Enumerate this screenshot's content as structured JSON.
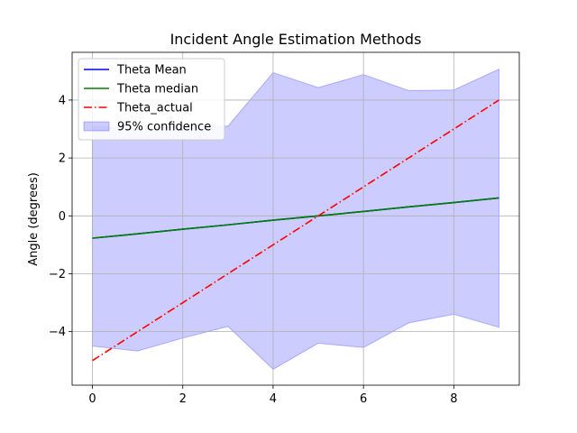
{
  "chart_data": {
    "type": "line",
    "title": "Incident Angle Estimation Methods",
    "xlabel": "",
    "ylabel": "Angle (degrees)",
    "x": [
      0,
      1,
      2,
      3,
      4,
      5,
      6,
      7,
      8,
      9
    ],
    "xlim": [
      -0.45,
      9.45
    ],
    "ylim": [
      -5.85,
      5.65
    ],
    "xticks": [
      0,
      2,
      4,
      6,
      8
    ],
    "yticks": [
      -4,
      -2,
      0,
      2,
      4
    ],
    "xtick_labels": [
      "0",
      "2",
      "4",
      "6",
      "8"
    ],
    "ytick_labels": [
      "−4",
      "−2",
      "0",
      "2",
      "4"
    ],
    "grid": true,
    "legend_position": "top-left",
    "series": [
      {
        "name": "Theta Mean",
        "style": "solid",
        "color": "#0000ff",
        "values": [
          -0.77,
          -0.62,
          -0.46,
          -0.31,
          -0.15,
          0.0,
          0.15,
          0.31,
          0.46,
          0.62
        ]
      },
      {
        "name": "Theta median",
        "style": "solid",
        "color": "#008000",
        "values": [
          -0.77,
          -0.62,
          -0.46,
          -0.31,
          -0.15,
          0.0,
          0.15,
          0.31,
          0.46,
          0.62
        ]
      },
      {
        "name": "Theta_actual",
        "style": "dashdot",
        "color": "#ff0000",
        "values": [
          -5,
          -4,
          -3,
          -2,
          -1,
          0,
          1,
          2,
          3,
          4
        ]
      }
    ],
    "band": {
      "name": "95% confidence",
      "color": "#0000ff",
      "upper": [
        3.1,
        3.0,
        3.1,
        3.1,
        4.95,
        4.43,
        4.88,
        4.33,
        4.35,
        5.07
      ],
      "lower": [
        -4.5,
        -4.67,
        -4.22,
        -3.82,
        -5.3,
        -4.4,
        -4.55,
        -3.7,
        -3.4,
        -3.85
      ]
    }
  }
}
